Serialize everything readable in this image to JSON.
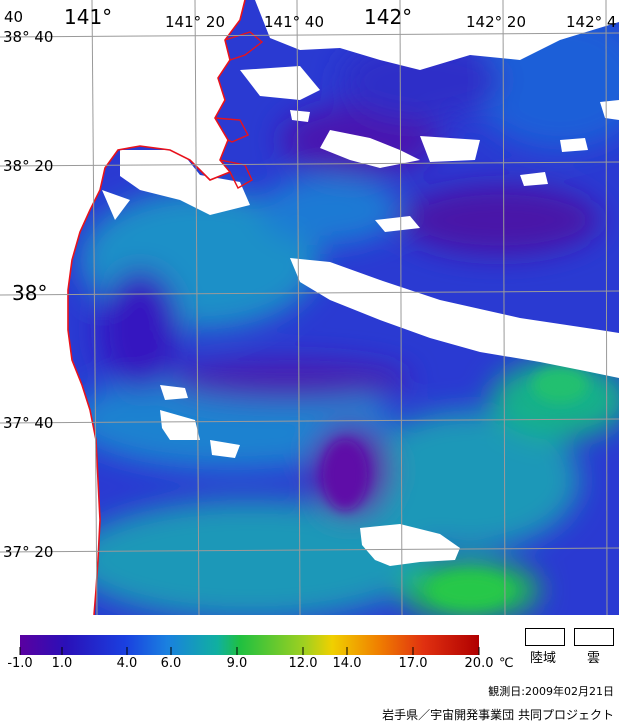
{
  "map": {
    "lon_labels": [
      "141°",
      "141° 20",
      "141° 40",
      "142°",
      "142° 20",
      "142° 4"
    ],
    "lat_labels": [
      "38° 40",
      "38° 20",
      "38°",
      "37° 40",
      "37° 20"
    ],
    "corner_label": "40",
    "colors": {
      "coastline": "#e8121c",
      "grid": "#9a9a9a",
      "land": "#ffffff",
      "cloud": "#ffffff"
    }
  },
  "legend": {
    "ticks": [
      "-1.0",
      "1.0",
      "4.0",
      "6.0",
      "9.0",
      "12.0",
      "14.0",
      "17.0",
      "20.0"
    ],
    "unit": "℃",
    "range": [
      -1.0,
      20.0
    ],
    "gradient_colors": [
      "#5a00a0",
      "#2a10b8",
      "#1a40e0",
      "#1a80e0",
      "#10b0a0",
      "#20c040",
      "#a0d020",
      "#f0d000",
      "#f08000",
      "#e03010",
      "#b00000"
    ],
    "land_label": "陸域",
    "cloud_label": "雲"
  },
  "footer": {
    "observation": "観測日:2009年02月21日",
    "credit": "岩手県／宇宙開発事業団 共同プロジェクト"
  }
}
